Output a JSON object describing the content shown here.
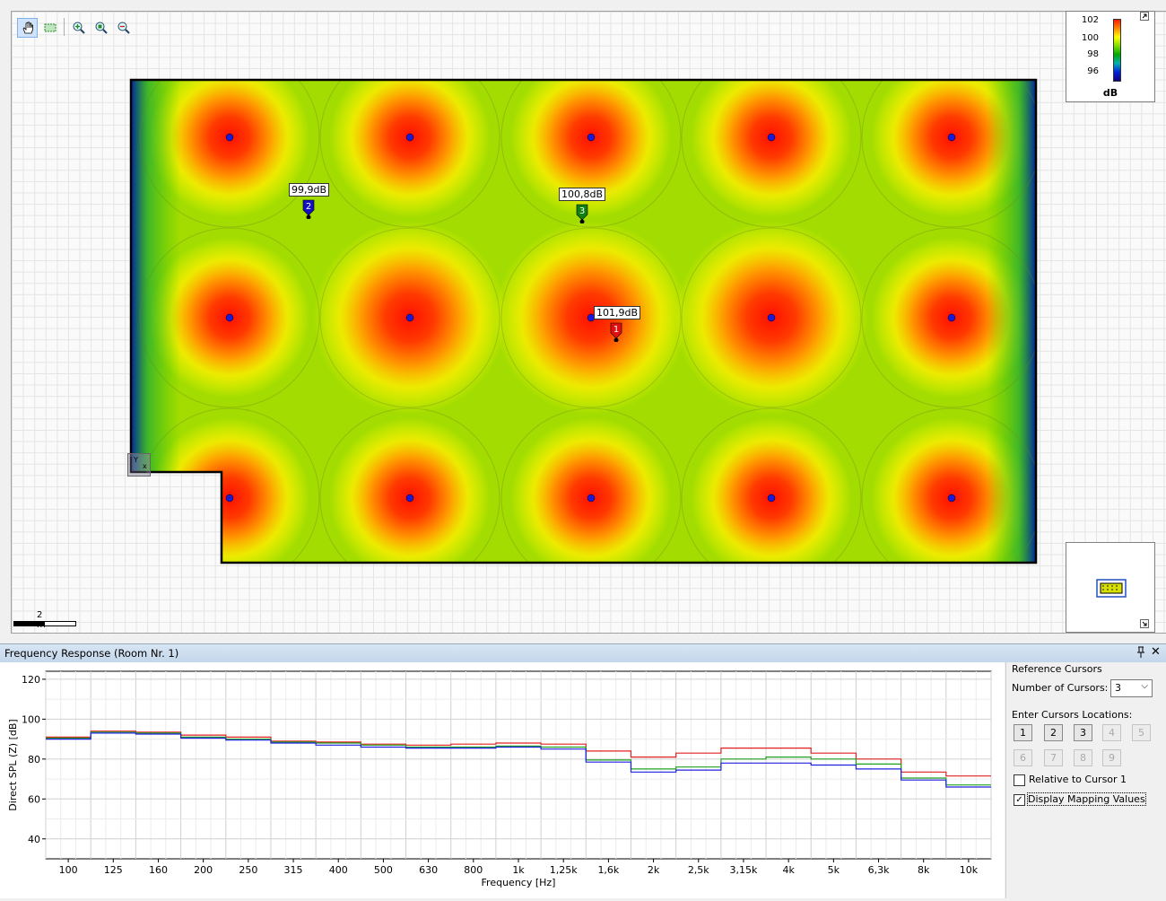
{
  "map": {
    "toolbar": [
      {
        "name": "pan-hand-icon",
        "active": true
      },
      {
        "name": "rect-select-icon",
        "active": false
      },
      {
        "name": "zoom-in-icon",
        "active": false
      },
      {
        "name": "zoom-window-icon",
        "active": false
      },
      {
        "name": "zoom-out-icon",
        "active": false
      }
    ],
    "legend": {
      "ticks": [
        "102",
        "100",
        "98",
        "96"
      ],
      "unit": "dB"
    },
    "scale_label": "2 m",
    "speakers_rows": 3,
    "speakers_cols": 5,
    "cursors": [
      {
        "num": "1",
        "label": "101,9dB",
        "color": "#e01010"
      },
      {
        "num": "2",
        "label": "99,9dB",
        "color": "#1010c0"
      },
      {
        "num": "3",
        "label": "100,8dB",
        "color": "#108010"
      }
    ]
  },
  "freq": {
    "title": "Frequency Response (Room Nr. 1)",
    "panel": {
      "ref_cursors": "Reference Cursors",
      "num_cursors_label": "Number of Cursors:",
      "num_cursors_value": "3",
      "enter_locations": "Enter Cursors Locations:",
      "buttons": [
        "1",
        "2",
        "3",
        "4",
        "5",
        "6",
        "7",
        "8",
        "9"
      ],
      "relative_label": "Relative to Cursor 1",
      "display_label": "Display Mapping Values",
      "relative_checked": false,
      "display_checked": true
    }
  },
  "chart_data": {
    "type": "line",
    "xlabel": "Frequency [Hz]",
    "ylabel": "Direct SPL (Z) [dB]",
    "ylim": [
      30,
      124
    ],
    "y_ticks": [
      "120",
      "100",
      "80",
      "60",
      "40"
    ],
    "categories": [
      "100",
      "125",
      "160",
      "200",
      "250",
      "315",
      "400",
      "500",
      "630",
      "800",
      "1k",
      "1,25k",
      "1,6k",
      "2k",
      "2,5k",
      "3,15k",
      "4k",
      "5k",
      "6,3k",
      "8k",
      "10k"
    ],
    "series": [
      {
        "color": "#e02020",
        "values": [
          91,
          94,
          93.5,
          92,
          91,
          89,
          88.5,
          87.5,
          87,
          87.5,
          88,
          87.5,
          84,
          81,
          83,
          85.5,
          85.5,
          83,
          80,
          73.5,
          71.5
        ]
      },
      {
        "color": "#20a020",
        "values": [
          90.5,
          93.5,
          93,
          91,
          90,
          88.5,
          88,
          87,
          86,
          86,
          86.5,
          86,
          79.5,
          75,
          76,
          80,
          81,
          80,
          77.5,
          70.5,
          67
        ]
      },
      {
        "color": "#2020e0",
        "values": [
          90,
          93,
          92.5,
          90.5,
          89.5,
          88,
          87,
          86,
          85.5,
          85.5,
          86,
          85,
          78.5,
          73.5,
          74.5,
          78,
          78,
          77,
          75,
          69.5,
          66
        ]
      }
    ]
  }
}
